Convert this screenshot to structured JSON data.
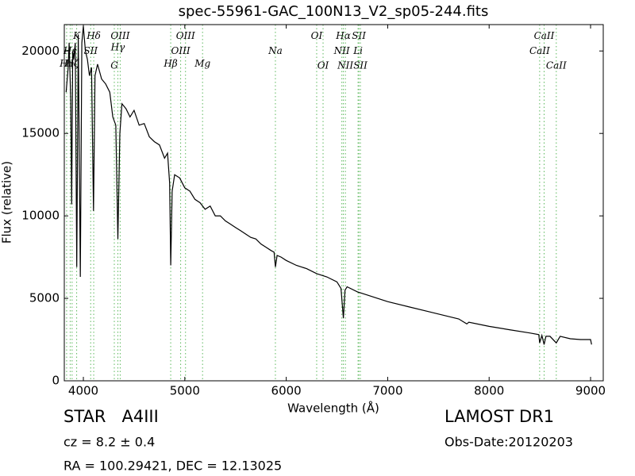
{
  "chart_data": {
    "type": "line",
    "title": "spec-55961-GAC_100N13_V2_sp05-244.fits",
    "x_label": "Wavelength (Å)",
    "y_label": "Flux (relative)",
    "color": "#000000",
    "annotation_color": "#5cb85c",
    "xlim": [
      3812,
      9125
    ],
    "ylim": [
      0,
      21600
    ],
    "xticks": [
      4000,
      5000,
      6000,
      7000,
      8000,
      9000
    ],
    "yticks": [
      0,
      5000,
      10000,
      15000,
      20000
    ],
    "x": [
      3830,
      3850,
      3860,
      3875,
      3885,
      3895,
      3905,
      3920,
      3935,
      3950,
      3970,
      3985,
      4000,
      4020,
      4040,
      4060,
      4080,
      4100,
      4115,
      4140,
      4180,
      4220,
      4260,
      4290,
      4320,
      4340,
      4360,
      4380,
      4420,
      4460,
      4500,
      4550,
      4600,
      4650,
      4700,
      4750,
      4800,
      4830,
      4850,
      4861,
      4875,
      4900,
      4950,
      5000,
      5050,
      5100,
      5150,
      5200,
      5250,
      5300,
      5350,
      5400,
      5450,
      5500,
      5550,
      5600,
      5650,
      5700,
      5750,
      5800,
      5850,
      5880,
      5893,
      5910,
      5950,
      6000,
      6100,
      6200,
      6300,
      6400,
      6500,
      6540,
      6563,
      6580,
      6600,
      6700,
      6800,
      6900,
      7000,
      7200,
      7400,
      7600,
      7700,
      7780,
      7800,
      8000,
      8200,
      8400,
      8490,
      8498,
      8520,
      8542,
      8560,
      8600,
      8662,
      8700,
      8800,
      8900,
      9000,
      9010
    ],
    "values": [
      17500,
      19000,
      20500,
      17000,
      10700,
      20000,
      19500,
      20500,
      6900,
      21000,
      6300,
      20500,
      21500,
      20000,
      19500,
      18500,
      19000,
      10300,
      18500,
      19200,
      18300,
      18000,
      17500,
      16000,
      15500,
      8600,
      15000,
      16800,
      16500,
      16000,
      16400,
      15500,
      15600,
      14800,
      14500,
      14300,
      13500,
      13800,
      12000,
      7000,
      11500,
      12500,
      12300,
      11700,
      11500,
      11000,
      10800,
      10400,
      10600,
      10000,
      10000,
      9700,
      9500,
      9300,
      9100,
      8900,
      8700,
      8600,
      8300,
      8100,
      7900,
      7800,
      6900,
      7600,
      7500,
      7300,
      7000,
      6800,
      6500,
      6300,
      6000,
      5600,
      3800,
      5500,
      5700,
      5400,
      5200,
      5000,
      4800,
      4500,
      4200,
      3900,
      3750,
      3450,
      3550,
      3300,
      3100,
      2900,
      2800,
      2300,
      2750,
      2200,
      2700,
      2700,
      2300,
      2700,
      2550,
      2500,
      2500,
      2200
    ],
    "annotations": [
      {
        "text": "K",
        "x": 3934,
        "y": 20900
      },
      {
        "text": "Hδ",
        "x": 4102,
        "y": 20900
      },
      {
        "text": "OIII",
        "x": 4363,
        "y": 20900
      },
      {
        "text": "OIII",
        "x": 5007,
        "y": 20900
      },
      {
        "text": "OI",
        "x": 6300,
        "y": 20900
      },
      {
        "text": "Hα",
        "x": 6563,
        "y": 20900
      },
      {
        "text": "SII",
        "x": 6716,
        "y": 20900
      },
      {
        "text": "CaII",
        "x": 8542,
        "y": 20900
      },
      {
        "text": "Hε",
        "x": 3870,
        "y": 20000
      },
      {
        "text": "SII",
        "x": 4072,
        "y": 20000
      },
      {
        "text": "Hγ",
        "x": 4340,
        "y": 20200
      },
      {
        "text": "OIII",
        "x": 4959,
        "y": 20000
      },
      {
        "text": "Na",
        "x": 5893,
        "y": 20000
      },
      {
        "text": "NII",
        "x": 6548,
        "y": 20000
      },
      {
        "text": "Li",
        "x": 6708,
        "y": 20000
      },
      {
        "text": "CaII",
        "x": 8498,
        "y": 20000
      },
      {
        "text": "Hη",
        "x": 3835,
        "y": 19230
      },
      {
        "text": "Hζ",
        "x": 3889,
        "y": 19230
      },
      {
        "text": "G",
        "x": 4305,
        "y": 19100
      },
      {
        "text": "Hβ",
        "x": 4861,
        "y": 19230
      },
      {
        "text": "Mg",
        "x": 5175,
        "y": 19230
      },
      {
        "text": "OI",
        "x": 6363,
        "y": 19100
      },
      {
        "text": "NII",
        "x": 6583,
        "y": 19100
      },
      {
        "text": "SII",
        "x": 6731,
        "y": 19100
      },
      {
        "text": "CaII",
        "x": 8662,
        "y": 19100
      }
    ]
  },
  "info": {
    "object": "STAR   A4III",
    "redshift": "cz = 8.2 ± 0.4",
    "coordinates": "RA = 100.29421, DEC = 12.13025",
    "release": "LAMOST DR1",
    "obs_date": "Obs-Date:20120203"
  }
}
